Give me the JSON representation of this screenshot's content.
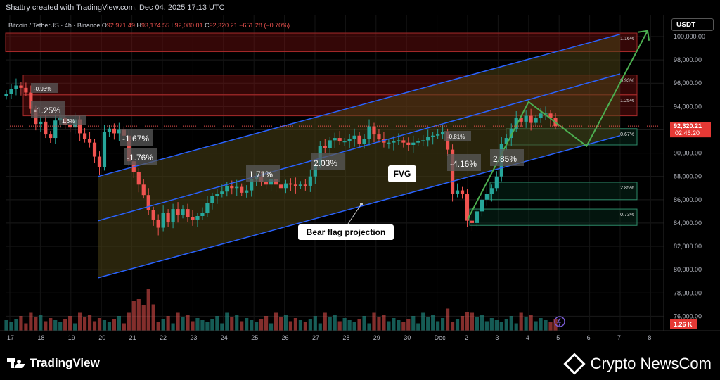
{
  "header": {
    "attribution": "Shattry created with TradingView.com, Dec 04, 2025 17:13 UTC",
    "symbol": "Bitcoin / TetherUS · 4h · Binance",
    "open_label": "O",
    "open": "92,971.49",
    "high_label": "H",
    "high": "93,174.55",
    "low_label": "L",
    "low": "92,080.01",
    "close_label": "C",
    "close": "92,320.21",
    "change": "−651.28 (−0.70%)"
  },
  "quote_currency": "USDT",
  "price_tag": {
    "price": "92,320.21",
    "countdown": "02:46:20"
  },
  "volume_tag": "1.26 K",
  "annotations": {
    "fvg": "FVG",
    "bear_flag": "Bear flag projection"
  },
  "footer": {
    "tradingview": "TradingView",
    "source": "Crypto NewsCom"
  },
  "colors": {
    "up": "#26a69a",
    "down": "#ef5350",
    "channel": "#2962ff",
    "projection": "#4caf50",
    "zone_red": "#8b1a1a",
    "zone_green": "#1b6b4a",
    "flag_fill": "#4a4216"
  },
  "chart_data": {
    "type": "candlestick",
    "title": "Bitcoin / TetherUS · 4h · Binance",
    "ylim": [
      74500,
      100300
    ],
    "y_ticks": [
      {
        "label": "76,000.00",
        "value": 76000
      },
      {
        "label": "78,000.00",
        "value": 78000
      },
      {
        "label": "80,000.00",
        "value": 80000
      },
      {
        "label": "82,000.00",
        "value": 82000
      },
      {
        "label": "84,000.00",
        "value": 84000
      },
      {
        "label": "86,000.00",
        "value": 86000
      },
      {
        "label": "88,000.00",
        "value": 88000
      },
      {
        "label": "90,000.00",
        "value": 90000
      },
      {
        "label": "92,000.00",
        "value": 92000
      },
      {
        "label": "94,000.00",
        "value": 94000
      },
      {
        "label": "96,000.00",
        "value": 96000
      },
      {
        "label": "98,000.00",
        "value": 98000
      },
      {
        "label": "100,000.00",
        "value": 100000
      }
    ],
    "x_ticks": [
      {
        "label": "17",
        "day": 0
      },
      {
        "label": "18",
        "day": 1
      },
      {
        "label": "19",
        "day": 2
      },
      {
        "label": "20",
        "day": 3
      },
      {
        "label": "21",
        "day": 4
      },
      {
        "label": "22",
        "day": 5
      },
      {
        "label": "23",
        "day": 6
      },
      {
        "label": "24",
        "day": 7
      },
      {
        "label": "25",
        "day": 8
      },
      {
        "label": "26",
        "day": 9
      },
      {
        "label": "27",
        "day": 10
      },
      {
        "label": "28",
        "day": 11
      },
      {
        "label": "29",
        "day": 12
      },
      {
        "label": "30",
        "day": 13
      },
      {
        "label": "Dec",
        "day": 14
      },
      {
        "label": "2",
        "day": 15
      },
      {
        "label": "3",
        "day": 16
      },
      {
        "label": "4",
        "day": 17
      },
      {
        "label": "5",
        "day": 18
      },
      {
        "label": "6",
        "day": 19
      },
      {
        "label": "7",
        "day": 20
      },
      {
        "label": "8",
        "day": 21
      }
    ],
    "last_price": 92320.21,
    "closes": [
      95100,
      95500,
      95800,
      95600,
      95200,
      93800,
      92500,
      92700,
      91600,
      91300,
      92800,
      93000,
      92400,
      92200,
      92900,
      91700,
      91200,
      90900,
      89700,
      88800,
      91800,
      92100,
      91700,
      92000,
      91500,
      89300,
      88400,
      87300,
      86400,
      85100,
      84300,
      83600,
      84900,
      84100,
      85200,
      84700,
      85200,
      84500,
      84300,
      84600,
      84900,
      85700,
      86300,
      86500,
      86700,
      87200,
      87000,
      87100,
      86600,
      86800,
      87800,
      88000,
      87500,
      87300,
      87800,
      87300,
      87000,
      87400,
      87300,
      87200,
      87300,
      87200,
      88000,
      89000,
      90600,
      90400,
      91100,
      91300,
      91000,
      91000,
      91200,
      91500,
      90800,
      91200,
      92300,
      91600,
      91200,
      90900,
      90900,
      91000,
      91100,
      90900,
      90700,
      90900,
      91000,
      91100,
      91400,
      91500,
      91600,
      91800,
      90300,
      86500,
      86800,
      86500,
      84200,
      84000,
      85000,
      86000,
      86500,
      87000,
      88000,
      90800,
      91300,
      92100,
      93000,
      92700,
      93200,
      92600,
      93000,
      93400,
      93400,
      93000,
      92320
    ],
    "change_labels": [
      "-0.93%",
      "-1.25%",
      "1.6%",
      "-1.67%",
      "-1.76%",
      "1.71%",
      "2.03%",
      "-0.81%",
      "-4.16%",
      "2.85%",
      "1.16%",
      "0.93%",
      "1.25%",
      "0.67%",
      "2.85%",
      "0.73%"
    ],
    "zones": [
      {
        "kind": "resistance",
        "from": 98700,
        "to": 100300,
        "label": "1.16%"
      },
      {
        "kind": "resistance",
        "from": 95000,
        "to": 96700,
        "label": "0.93%"
      },
      {
        "kind": "resistance",
        "from": 93200,
        "to": 95000,
        "label": "1.25%"
      },
      {
        "kind": "support",
        "from": 90700,
        "to": 92100,
        "label": "0.67%"
      },
      {
        "kind": "support",
        "from": 86000,
        "to": 87500,
        "label": "2.85%"
      },
      {
        "kind": "support",
        "from": 83800,
        "to": 85200,
        "label": "0.73%"
      }
    ],
    "channel": {
      "upper": [
        {
          "day": 2.9,
          "price": 88000
        },
        {
          "day": 20,
          "price": 100200
        }
      ],
      "middle": [
        {
          "day": 2.9,
          "price": 84200
        },
        {
          "day": 20,
          "price": 96800
        }
      ],
      "lower": [
        {
          "day": 2.9,
          "price": 79300
        },
        {
          "day": 20,
          "price": 91500
        }
      ]
    },
    "projection_path": [
      {
        "day": 15.0,
        "price": 84300
      },
      {
        "day": 17.0,
        "price": 94400
      },
      {
        "day": 18.9,
        "price": 90600
      },
      {
        "day": 20.9,
        "price": 100500
      }
    ]
  }
}
